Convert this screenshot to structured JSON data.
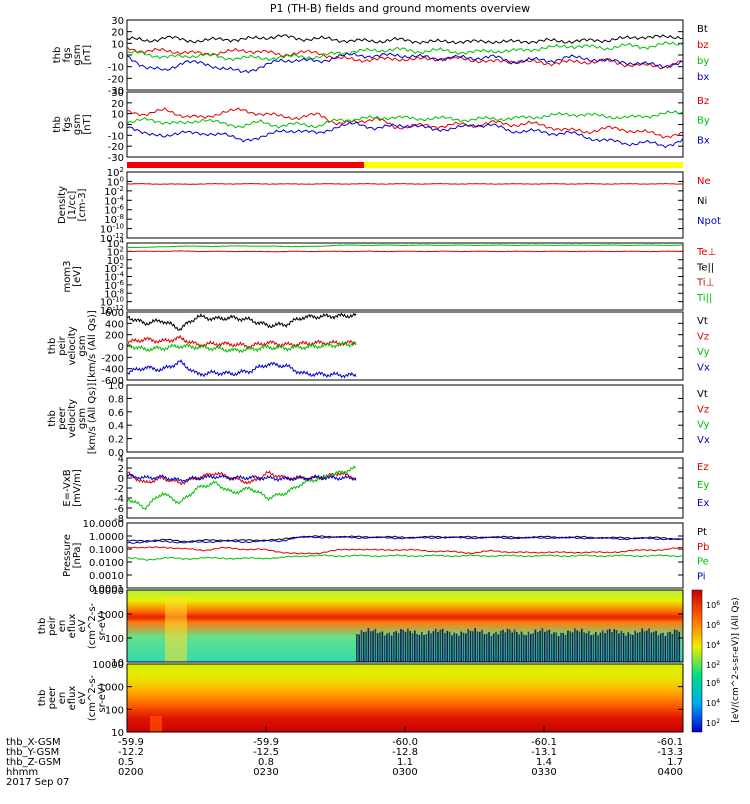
{
  "title": "P1 (TH-B) fields and ground moments overview",
  "date": "2017 Sep 07",
  "colorbar": {
    "label": "[eV/(cm^2-s-sr-eV)] (All Qs)",
    "ticks": [
      "10^6",
      "10^6",
      "10^4",
      "10^2",
      "10^6",
      "10^4",
      "10^2"
    ]
  },
  "ephemeris": {
    "labels": [
      "thb_X-GSM",
      "thb_Y-GSM",
      "thb_Z-GSM",
      "hhmm"
    ],
    "rows": [
      [
        "-59.9",
        "-59.9",
        "-60.0",
        "-60.1",
        "-60.1"
      ],
      [
        "-12.2",
        "-12.5",
        "-12.8",
        "-13.1",
        "-13.3"
      ],
      [
        "0.5",
        "0.8",
        "1.1",
        "1.4",
        "1.7"
      ],
      [
        "0200",
        "0230",
        "0300",
        "0330",
        "0400"
      ]
    ]
  },
  "chart_data": [
    {
      "type": "line",
      "ylabel_lines": [
        "thb",
        "fgs",
        "gsm",
        "[nT]"
      ],
      "ylim": [
        -30,
        30
      ],
      "yticks": [
        "30",
        "20",
        "10",
        "0",
        "-10",
        "-20",
        "-30"
      ],
      "legend": [
        "Bt",
        "bz",
        "by",
        "bx"
      ],
      "legend_colors": [
        "#000000",
        "#e00000",
        "#00c000",
        "#0000cc"
      ],
      "series": [
        {
          "name": "Bt",
          "values": [
            14,
            12,
            15,
            13,
            12,
            14,
            13,
            15,
            16,
            14,
            14,
            13,
            12,
            12,
            13,
            12,
            11,
            12,
            11,
            12,
            11,
            12,
            12,
            12,
            12,
            13,
            14,
            16,
            15,
            16
          ]
        },
        {
          "name": "bz",
          "values": [
            6,
            3,
            4,
            2,
            1,
            2,
            4,
            3,
            0,
            2,
            2,
            -3,
            -4,
            -4,
            -3,
            -4,
            -3,
            -3,
            -4,
            -6,
            -5,
            -6,
            -7,
            -6,
            -6,
            -5,
            -8,
            -9,
            -10,
            -6
          ]
        },
        {
          "name": "by",
          "values": [
            3,
            0,
            -1,
            -2,
            1,
            -3,
            -2,
            -3,
            -2,
            -1,
            -2,
            2,
            3,
            4,
            5,
            3,
            4,
            3,
            2,
            4,
            3,
            5,
            6,
            8,
            7,
            6,
            8,
            7,
            9,
            10
          ]
        },
        {
          "name": "bx",
          "values": [
            -2,
            -10,
            -14,
            -5,
            -8,
            -11,
            -15,
            -10,
            -5,
            -4,
            -6,
            -1,
            0,
            -1,
            0,
            -1,
            -3,
            -2,
            -3,
            -1,
            -6,
            -4,
            -5,
            -2,
            -3,
            -5,
            -6,
            -8,
            -9,
            -7
          ]
        }
      ]
    },
    {
      "type": "line",
      "ylabel_lines": [
        "thb",
        "fgs",
        "gsm",
        "[nT]"
      ],
      "ylim": [
        -35,
        30
      ],
      "yticks": [
        "30",
        "20",
        "10",
        "0",
        "-10",
        "-20",
        "-30"
      ],
      "legend": [
        "Bz",
        "By",
        "Bx"
      ],
      "legend_colors": [
        "#e00000",
        "#00c000",
        "#0000cc"
      ],
      "series": [
        {
          "name": "Bz",
          "values": [
            10,
            8,
            12,
            6,
            4,
            10,
            12,
            8,
            6,
            4,
            8,
            -2,
            0,
            4,
            -6,
            -3,
            -5,
            -2,
            -4,
            0,
            -3,
            -1,
            -5,
            -8,
            -10,
            -6,
            -8,
            -10,
            -14,
            -12
          ]
        },
        {
          "name": "By",
          "values": [
            0,
            2,
            0,
            -2,
            3,
            -2,
            -4,
            0,
            -4,
            -2,
            -4,
            2,
            3,
            4,
            5,
            3,
            4,
            3,
            2,
            4,
            3,
            5,
            6,
            8,
            7,
            6,
            4,
            6,
            8,
            10
          ]
        },
        {
          "name": "Bx",
          "values": [
            -6,
            -10,
            -16,
            -8,
            -14,
            -10,
            -20,
            -14,
            -10,
            -8,
            -12,
            -4,
            -2,
            -6,
            -4,
            -3,
            -8,
            -6,
            -4,
            -2,
            -10,
            -8,
            -12,
            -10,
            -16,
            -18,
            -22,
            -20,
            -24,
            -18
          ]
        }
      ]
    },
    {
      "type": "line",
      "ylabel_lines": [
        "Density",
        "[1/cc]",
        "[cm-3]"
      ],
      "log": true,
      "ylim_exp": [
        -12,
        2
      ],
      "yticks": [
        "10^2",
        "10^0",
        "10^-2",
        "10^-4",
        "10^-6",
        "10^-8",
        "10^-10",
        "10^-12"
      ],
      "legend": [
        "Ne",
        "Ni",
        "Npot"
      ],
      "legend_colors": [
        "#e00000",
        "#000000",
        "#0000cc"
      ],
      "series": [
        {
          "name": "Ne",
          "values": [
            0.3,
            0.3,
            0.28,
            0.25,
            0.3,
            0.3,
            0.32,
            0.3,
            0.3,
            0.28,
            0.3,
            0.3,
            0.3,
            0.3,
            0.3,
            0.3,
            0.3,
            0.3,
            0.3,
            0.3,
            0.3,
            0.3,
            0.3,
            0.3,
            0.3,
            0.3,
            0.3,
            0.3,
            0.3,
            0.3
          ]
        }
      ]
    },
    {
      "type": "line",
      "ylabel_lines": [
        "mom3",
        "[eV]"
      ],
      "log": true,
      "ylim_exp": [
        -12,
        4
      ],
      "yticks": [
        "10^4",
        "10^2",
        "10^0",
        "10^-2",
        "10^-4",
        "10^-6",
        "10^-8",
        "10^-10",
        "10^-12"
      ],
      "legend": [
        "Te⊥",
        "Te||",
        "Ti⊥",
        "Ti||"
      ],
      "legend_colors": [
        "#e00000",
        "#000000",
        "#cc0000",
        "#00c000"
      ],
      "series": [
        {
          "name": "Ti||",
          "values": [
            800,
            1000,
            1200,
            2000,
            1500,
            1800,
            2000,
            1800,
            1600,
            1500,
            1500,
            3000,
            3000,
            3000,
            3000,
            3000,
            3000,
            3000,
            3000,
            3000,
            3000,
            3000,
            3000,
            3000,
            3000,
            3000,
            3000,
            3000,
            3000,
            3000
          ]
        },
        {
          "name": "Te⊥",
          "values": [
            100,
            100,
            110,
            120,
            100,
            100,
            100,
            90,
            90,
            100,
            100,
            100,
            100,
            100,
            100,
            100,
            100,
            100,
            100,
            100,
            100,
            100,
            100,
            100,
            100,
            100,
            100,
            100,
            100,
            100
          ]
        }
      ]
    },
    {
      "type": "line",
      "ylabel_lines": [
        "thb",
        "peir",
        "velocity",
        "gsm",
        "[km/s (All Qs)]"
      ],
      "ylim": [
        -600,
        600
      ],
      "yticks": [
        "600",
        "400",
        "200",
        "0",
        "-200",
        "-400",
        "-600"
      ],
      "legend": [
        "Vt",
        "Vz",
        "Vy",
        "Vx"
      ],
      "legend_colors": [
        "#000000",
        "#e00000",
        "#00c000",
        "#0000cc"
      ],
      "series": [
        {
          "name": "Vt",
          "values": [
            520,
            400,
            450,
            300,
            520,
            480,
            500,
            460,
            360,
            380,
            510,
            520,
            530,
            540
          ]
        },
        {
          "name": "Vz",
          "values": [
            60,
            120,
            80,
            140,
            20,
            40,
            30,
            0,
            60,
            20,
            40,
            60,
            50,
            60
          ]
        },
        {
          "name": "Vy",
          "values": [
            20,
            -60,
            -40,
            0,
            -20,
            -40,
            -80,
            -60,
            -20,
            -40,
            -20,
            0,
            20,
            40
          ]
        },
        {
          "name": "Vx",
          "values": [
            -470,
            -380,
            -420,
            -280,
            -500,
            -470,
            -490,
            -440,
            -320,
            -350,
            -490,
            -500,
            -510,
            -520
          ]
        }
      ]
    },
    {
      "type": "line",
      "ylabel_lines": [
        "thb",
        "peer",
        "velocity",
        "gsm",
        "[km/s (All Qs)]"
      ],
      "ylim": [
        0,
        1
      ],
      "yticks": [
        "1.0",
        "0.8",
        "0.6",
        "0.4",
        "0.2",
        "0.0"
      ],
      "legend": [
        "Vt",
        "Vz",
        "Vy",
        "Vx"
      ],
      "legend_colors": [
        "#000000",
        "#e00000",
        "#00c000",
        "#0000cc"
      ],
      "series": []
    },
    {
      "type": "line",
      "ylabel_lines": [
        "E=-VxB",
        "[mV/m]"
      ],
      "ylim": [
        -8,
        4
      ],
      "yticks": [
        "4",
        "2",
        "0",
        "-2",
        "-4",
        "-6",
        "-8"
      ],
      "legend": [
        "Ez",
        "Ey",
        "Ex"
      ],
      "legend_colors": [
        "#e00000",
        "#00c000",
        "#0000cc"
      ],
      "series": [
        {
          "name": "Ez",
          "values": [
            1,
            -1,
            0,
            -1,
            0,
            1,
            0,
            -1,
            1,
            0,
            0,
            0,
            1,
            0
          ]
        },
        {
          "name": "Ey",
          "values": [
            -4,
            -6,
            -3,
            -5,
            -2,
            -1,
            -3,
            -2,
            -4,
            -3,
            -1,
            0,
            1,
            2
          ]
        },
        {
          "name": "Ex",
          "values": [
            0.5,
            0,
            0.2,
            -0.5,
            0,
            0.3,
            0,
            0.1,
            0,
            -0.2,
            0,
            0.1,
            0,
            0
          ]
        }
      ]
    },
    {
      "type": "line",
      "ylabel_lines": [
        "Pressure",
        "[nPa]"
      ],
      "log": true,
      "ylim_exp": [
        -4,
        1
      ],
      "yticks": [
        "10.0000",
        "1.0000",
        "0.1000",
        "0.0100",
        "0.0010",
        "0.0001"
      ],
      "legend": [
        "Pt",
        "Pb",
        "Pe",
        "Pi"
      ],
      "legend_colors": [
        "#000000",
        "#e00000",
        "#00c000",
        "#0000cc"
      ],
      "series": [
        {
          "name": "Pt",
          "values": [
            0.4,
            0.45,
            0.5,
            0.4,
            0.45,
            0.5,
            0.45,
            0.5,
            0.5,
            0.9,
            0.9,
            0.9,
            0.85,
            0.85,
            0.8,
            0.8,
            0.85,
            0.85,
            0.8,
            0.85,
            0.8,
            0.8,
            0.85,
            0.8,
            0.8,
            0.75,
            0.7,
            0.75,
            0.7,
            0.6
          ]
        },
        {
          "name": "Pb",
          "values": [
            0.15,
            0.12,
            0.14,
            0.1,
            0.08,
            0.12,
            0.1,
            0.09,
            0.06,
            0.04,
            0.05,
            0.08,
            0.1,
            0.08,
            0.09,
            0.08,
            0.07,
            0.06,
            0.05,
            0.07,
            0.06,
            0.05,
            0.06,
            0.05,
            0.06,
            0.05,
            0.07,
            0.08,
            0.09,
            0.12
          ]
        },
        {
          "name": "Pe",
          "values": [
            0.02,
            0.015,
            0.02,
            0.018,
            0.02,
            0.02,
            0.018,
            0.02,
            0.02,
            0.03,
            0.03,
            0.03,
            0.03,
            0.03,
            0.03,
            0.03,
            0.03,
            0.03,
            0.03,
            0.03,
            0.03,
            0.03,
            0.03,
            0.03,
            0.03,
            0.03,
            0.03,
            0.03,
            0.03,
            0.03
          ]
        },
        {
          "name": "Pi",
          "values": [
            0.3,
            0.35,
            0.4,
            0.3,
            0.35,
            0.4,
            0.35,
            0.4,
            0.4,
            0.8,
            0.8,
            0.8,
            0.75,
            0.75,
            0.7,
            0.7,
            0.75,
            0.75,
            0.7,
            0.75,
            0.7,
            0.7,
            0.75,
            0.7,
            0.7,
            0.65,
            0.6,
            0.65,
            0.6,
            0.5
          ]
        }
      ]
    },
    {
      "type": "heatmap",
      "ylabel_lines": [
        "thb",
        "peir",
        "en",
        "eflux",
        "eV",
        "(cm^2-s-",
        "sr-eV)"
      ],
      "yticks": [
        "10000",
        "1000",
        "100",
        "10"
      ]
    },
    {
      "type": "heatmap",
      "ylabel_lines": [
        "thb",
        "peer",
        "en",
        "eflux",
        "eV",
        "(cm^2-s-",
        "sr-eV)"
      ],
      "yticks": [
        "10000",
        "1000",
        "100",
        "10"
      ]
    }
  ]
}
